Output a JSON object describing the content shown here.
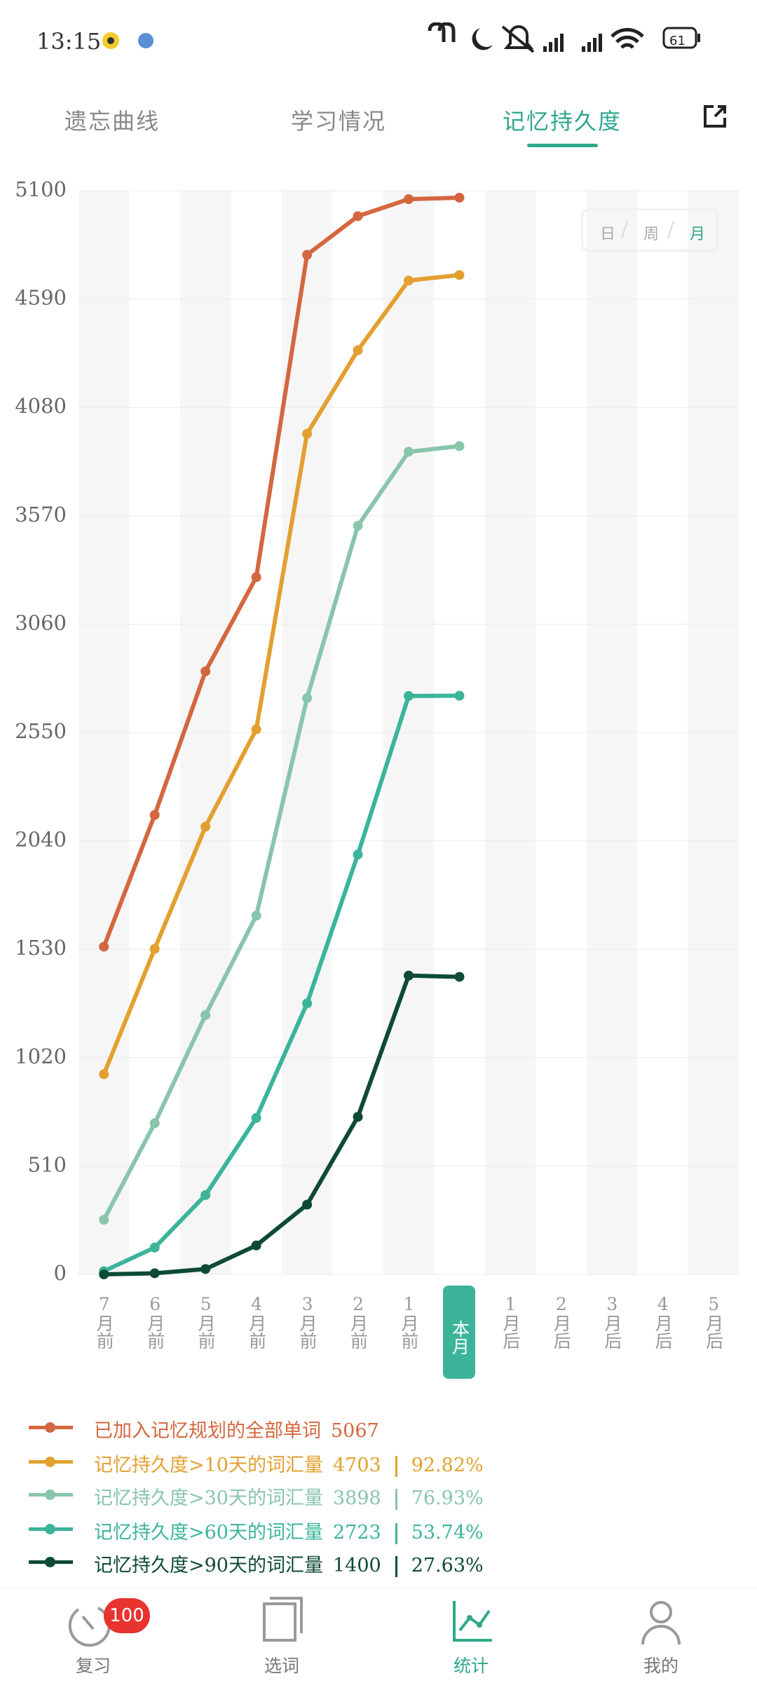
{
  "status_bar": {
    "time": "13:15",
    "battery": 61
  },
  "tabs": [
    "遗忘曲线",
    "学习情况",
    "记忆持久度"
  ],
  "chart_data": {
    "type": "line",
    "categories": [
      "7月前",
      "6月前",
      "5月前",
      "4月前",
      "3月前",
      "2月前",
      "1月前",
      "本月",
      "1月后",
      "2月后",
      "3月后",
      "4月后",
      "5月后"
    ],
    "ylim": [
      0,
      5100
    ],
    "yticks": [
      0,
      510,
      1020,
      1530,
      2040,
      2550,
      3060,
      3570,
      4080,
      4590,
      5100
    ],
    "period_toggle": [
      "日",
      "周",
      "月"
    ],
    "series": [
      {
        "name": "已加入记忆规划的全部单词",
        "color": "#d4673f",
        "total": 5067,
        "values": [
          1542,
          2162,
          2838,
          3281,
          4798,
          4980,
          5060,
          5067,
          null,
          null,
          null,
          null,
          null
        ]
      },
      {
        "name": "记忆持久度>10天的词汇量",
        "color": "#e3a030",
        "total": 4703,
        "share": "92.82%",
        "values": [
          942,
          1532,
          2107,
          2565,
          3956,
          4349,
          4677,
          4703,
          null,
          null,
          null,
          null,
          null
        ]
      },
      {
        "name": "记忆持久度>30天的词汇量",
        "color": "#88c5ab",
        "total": 3898,
        "share": "76.93%",
        "values": [
          257,
          711,
          1220,
          1688,
          2712,
          3523,
          3871,
          3898,
          null,
          null,
          null,
          null,
          null
        ]
      },
      {
        "name": "记忆持久度>60天的词汇量",
        "color": "#3bb49a",
        "total": 2723,
        "share": "53.74%",
        "values": [
          15,
          126,
          373,
          736,
          1275,
          1976,
          2722,
          2723,
          null,
          null,
          null,
          null,
          null
        ]
      },
      {
        "name": "记忆持久度>90天的词汇量",
        "color": "#0e4a36",
        "total": 1400,
        "share": "27.63%",
        "values": [
          0,
          5,
          25,
          136,
          328,
          741,
          1406,
          1400,
          null,
          null,
          null,
          null,
          null
        ]
      }
    ]
  },
  "badge": 100,
  "nav": [
    "复习",
    "选词",
    "统计",
    "我的"
  ]
}
